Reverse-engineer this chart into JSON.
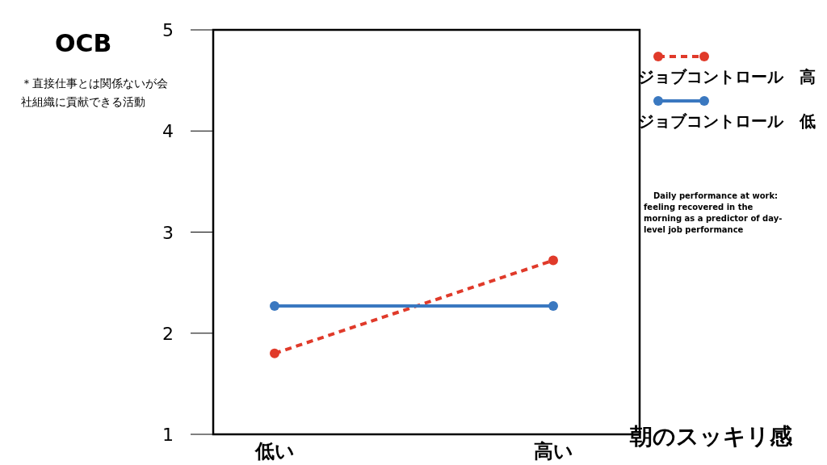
{
  "chart_data": {
    "type": "line",
    "ylabel": "OCB",
    "xlabel": "朝のスッキリ感",
    "categories": [
      "低い",
      "高い"
    ],
    "series": [
      {
        "name": "ジョブコントロール　高",
        "color": "#e03a2a",
        "values": [
          1.8,
          2.72
        ],
        "line_style": "dashed"
      },
      {
        "name": "ジョブコントロール　低",
        "color": "#3a78c0",
        "values": [
          2.27,
          2.27
        ],
        "line_style": "solid"
      }
    ],
    "ylim": [
      1,
      5
    ],
    "yticks": [
      1,
      2,
      3,
      4,
      5
    ],
    "marker": "circle",
    "legend": "top right",
    "annotations": [
      "＊直接仕事とは関係ないが会社組織に貢献できる活動",
      "Daily performance at work: feeling recovered in the morning as a predictor of day-level job performance"
    ]
  }
}
